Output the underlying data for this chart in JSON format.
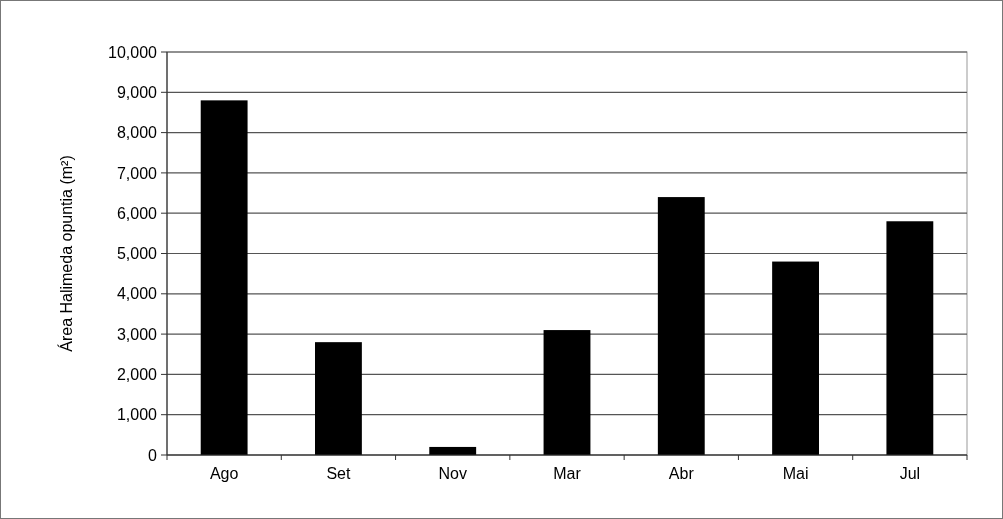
{
  "chart_data": {
    "type": "bar",
    "ylabel": "Área Halimeda opuntia (m²)",
    "categories": [
      "Ago",
      "Set",
      "Nov",
      "Mar",
      "Abr",
      "Mai",
      "Jul"
    ],
    "values": [
      8800,
      2800,
      200,
      3100,
      6400,
      4800,
      5800
    ],
    "color": "#000000",
    "ylim": [
      0,
      10000
    ],
    "yticks": [
      {
        "value": 0,
        "label": "0"
      },
      {
        "value": 1000,
        "label": "1,000"
      },
      {
        "value": 2000,
        "label": "2,000"
      },
      {
        "value": 3000,
        "label": "3,000"
      },
      {
        "value": 4000,
        "label": "4,000"
      },
      {
        "value": 5000,
        "label": "5,000"
      },
      {
        "value": 6000,
        "label": "6,000"
      },
      {
        "value": 7000,
        "label": "7,000"
      },
      {
        "value": 8000,
        "label": "8,000"
      },
      {
        "value": 9000,
        "label": "9,000"
      },
      {
        "value": 10000,
        "label": "10,000"
      }
    ],
    "grid": "y"
  }
}
